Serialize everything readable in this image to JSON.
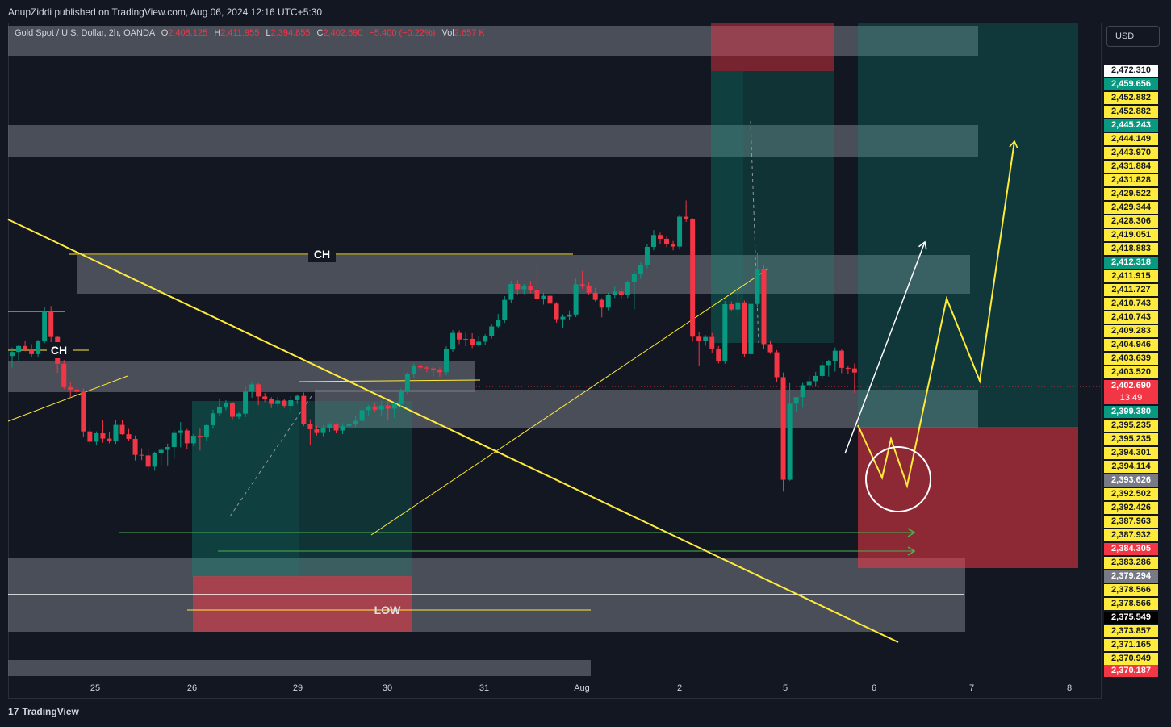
{
  "header": {
    "publisher": "AnupZiddi published on TradingView.com, Aug 06, 2024 12:16 UTC+5:30"
  },
  "legend": {
    "symbol": "Gold Spot / U.S. Dollar, 2h, OANDA",
    "open_label": "O",
    "open": "2,408.125",
    "high_label": "H",
    "high": "2,411.955",
    "low_label": "L",
    "low": "2,394.855",
    "close_label": "C",
    "close": "2,402.690",
    "change": "−5.400 (−0.22%)",
    "vol_label": "Vol",
    "vol": "2.657 K"
  },
  "currency_button": "USD",
  "footer": {
    "brand": "TradingView",
    "logo_glyph": "17"
  },
  "annotations": {
    "ch_top": "CH",
    "ch_left": "CH",
    "low_label": "LOW"
  },
  "price_labels": [
    {
      "text": "2,472.310",
      "bg": "#ffffff",
      "fg": "#131722"
    },
    {
      "text": "2,459.656",
      "bg": "#089981",
      "fg": "#ffffff"
    },
    {
      "text": "2,452.882",
      "bg": "#ffeb3b",
      "fg": "#131722"
    },
    {
      "text": "2,452.882",
      "bg": "#ffeb3b",
      "fg": "#131722"
    },
    {
      "text": "2,445.243",
      "bg": "#089981",
      "fg": "#ffffff"
    },
    {
      "text": "2,444.149",
      "bg": "#ffeb3b",
      "fg": "#131722"
    },
    {
      "text": "2,443.970",
      "bg": "#ffeb3b",
      "fg": "#131722"
    },
    {
      "text": "2,431.884",
      "bg": "#ffeb3b",
      "fg": "#131722"
    },
    {
      "text": "2,431.828",
      "bg": "#ffeb3b",
      "fg": "#131722"
    },
    {
      "text": "2,429.522",
      "bg": "#ffeb3b",
      "fg": "#131722"
    },
    {
      "text": "2,429.344",
      "bg": "#ffeb3b",
      "fg": "#131722"
    },
    {
      "text": "2,428.306",
      "bg": "#ffeb3b",
      "fg": "#131722"
    },
    {
      "text": "2,419.051",
      "bg": "#ffeb3b",
      "fg": "#131722"
    },
    {
      "text": "2,418.883",
      "bg": "#ffeb3b",
      "fg": "#131722"
    },
    {
      "text": "2,412.318",
      "bg": "#089981",
      "fg": "#ffffff"
    },
    {
      "text": "2,411.915",
      "bg": "#ffeb3b",
      "fg": "#131722"
    },
    {
      "text": "2,411.727",
      "bg": "#ffeb3b",
      "fg": "#131722"
    },
    {
      "text": "2,410.743",
      "bg": "#ffeb3b",
      "fg": "#131722"
    },
    {
      "text": "2,410.743",
      "bg": "#ffeb3b",
      "fg": "#131722"
    },
    {
      "text": "2,409.283",
      "bg": "#ffeb3b",
      "fg": "#131722"
    },
    {
      "text": "2,404.946",
      "bg": "#ffeb3b",
      "fg": "#131722"
    },
    {
      "text": "2,403.639",
      "bg": "#ffeb3b",
      "fg": "#131722"
    },
    {
      "text": "2,403.520",
      "bg": "#ffeb3b",
      "fg": "#131722"
    },
    {
      "text": "2,402.690",
      "bg": "#f23645",
      "fg": "#ffffff",
      "sub": "13:49"
    },
    {
      "text": "2,399.380",
      "bg": "#089981",
      "fg": "#ffffff"
    },
    {
      "text": "2,395.235",
      "bg": "#ffeb3b",
      "fg": "#131722"
    },
    {
      "text": "2,395.235",
      "bg": "#ffeb3b",
      "fg": "#131722"
    },
    {
      "text": "2,394.301",
      "bg": "#ffeb3b",
      "fg": "#131722"
    },
    {
      "text": "2,394.114",
      "bg": "#ffeb3b",
      "fg": "#131722"
    },
    {
      "text": "2,393.626",
      "bg": "#787b86",
      "fg": "#ffffff"
    },
    {
      "text": "2,392.502",
      "bg": "#ffeb3b",
      "fg": "#131722"
    },
    {
      "text": "2,392.426",
      "bg": "#ffeb3b",
      "fg": "#131722"
    },
    {
      "text": "2,387.963",
      "bg": "#ffeb3b",
      "fg": "#131722"
    },
    {
      "text": "2,387.932",
      "bg": "#ffeb3b",
      "fg": "#131722"
    },
    {
      "text": "2,384.305",
      "bg": "#f23645",
      "fg": "#ffffff"
    },
    {
      "text": "2,383.286",
      "bg": "#ffeb3b",
      "fg": "#131722"
    },
    {
      "text": "2,379.294",
      "bg": "#787b86",
      "fg": "#ffffff"
    },
    {
      "text": "2,378.566",
      "bg": "#ffeb3b",
      "fg": "#131722"
    },
    {
      "text": "2,378.566",
      "bg": "#ffeb3b",
      "fg": "#131722"
    },
    {
      "text": "2,375.549",
      "bg": "#000000",
      "fg": "#ffffff"
    },
    {
      "text": "2,373.857",
      "bg": "#ffeb3b",
      "fg": "#131722"
    },
    {
      "text": "2,371.165",
      "bg": "#ffeb3b",
      "fg": "#131722"
    },
    {
      "text": "2,370.949",
      "bg": "#ffeb3b",
      "fg": "#131722"
    },
    {
      "text": "2,370.187",
      "bg": "#f23645",
      "fg": "#ffffff"
    }
  ],
  "chart_data": {
    "type": "candlestick",
    "title": "Gold Spot / U.S. Dollar, 2h, OANDA",
    "time_axis_labels": [
      "25",
      "26",
      "29",
      "30",
      "31",
      "Aug",
      "2",
      "5",
      "6",
      "7",
      "8"
    ],
    "up_color": "#089981",
    "down_color": "#f23645",
    "last_price": 2402.69,
    "candles": [
      {
        "o": 2408.0,
        "h": 2410.7,
        "l": 2404.3,
        "c": 2409.3
      },
      {
        "o": 2409.3,
        "h": 2411.5,
        "l": 2406.6,
        "c": 2411.2
      },
      {
        "o": 2411.2,
        "h": 2413.0,
        "l": 2409.5,
        "c": 2410.2
      },
      {
        "o": 2410.2,
        "h": 2411.8,
        "l": 2407.5,
        "c": 2408.6
      },
      {
        "o": 2408.6,
        "h": 2413.2,
        "l": 2407.6,
        "c": 2412.7
      },
      {
        "o": 2412.7,
        "h": 2423.6,
        "l": 2412.1,
        "c": 2422.4
      },
      {
        "o": 2422.4,
        "h": 2424.0,
        "l": 2411.1,
        "c": 2414.1
      },
      {
        "o": 2414.1,
        "h": 2414.3,
        "l": 2402.6,
        "c": 2405.5
      },
      {
        "o": 2405.5,
        "h": 2406.7,
        "l": 2397.4,
        "c": 2398.0
      },
      {
        "o": 2398.0,
        "h": 2399.8,
        "l": 2394.6,
        "c": 2397.2
      },
      {
        "o": 2397.2,
        "h": 2398.0,
        "l": 2395.6,
        "c": 2396.5
      },
      {
        "o": 2396.5,
        "h": 2397.6,
        "l": 2381.9,
        "c": 2383.8
      },
      {
        "o": 2383.8,
        "h": 2385.1,
        "l": 2379.6,
        "c": 2380.5
      },
      {
        "o": 2380.5,
        "h": 2383.8,
        "l": 2379.4,
        "c": 2383.2
      },
      {
        "o": 2383.2,
        "h": 2387.4,
        "l": 2380.2,
        "c": 2381.5
      },
      {
        "o": 2381.5,
        "h": 2383.6,
        "l": 2380.0,
        "c": 2380.7
      },
      {
        "o": 2380.7,
        "h": 2387.5,
        "l": 2379.8,
        "c": 2385.9
      },
      {
        "o": 2385.9,
        "h": 2387.6,
        "l": 2382.7,
        "c": 2382.9
      },
      {
        "o": 2382.9,
        "h": 2384.6,
        "l": 2380.8,
        "c": 2381.4
      },
      {
        "o": 2381.4,
        "h": 2382.5,
        "l": 2374.5,
        "c": 2376.3
      },
      {
        "o": 2376.3,
        "h": 2378.4,
        "l": 2374.6,
        "c": 2376.1
      },
      {
        "o": 2376.1,
        "h": 2378.1,
        "l": 2371.3,
        "c": 2372.5
      },
      {
        "o": 2372.5,
        "h": 2377.3,
        "l": 2371.2,
        "c": 2376.9
      },
      {
        "o": 2376.9,
        "h": 2378.6,
        "l": 2372.9,
        "c": 2377.9
      },
      {
        "o": 2377.9,
        "h": 2379.9,
        "l": 2372.9,
        "c": 2378.8
      },
      {
        "o": 2378.8,
        "h": 2384.2,
        "l": 2375.1,
        "c": 2383.3
      },
      {
        "o": 2383.3,
        "h": 2386.8,
        "l": 2378.7,
        "c": 2384.1
      },
      {
        "o": 2384.1,
        "h": 2384.6,
        "l": 2378.0,
        "c": 2380.0
      },
      {
        "o": 2380.0,
        "h": 2383.0,
        "l": 2379.1,
        "c": 2382.4
      },
      {
        "o": 2382.4,
        "h": 2384.7,
        "l": 2377.7,
        "c": 2381.9
      },
      {
        "o": 2381.9,
        "h": 2386.2,
        "l": 2380.8,
        "c": 2385.8
      },
      {
        "o": 2385.8,
        "h": 2390.7,
        "l": 2384.7,
        "c": 2389.6
      },
      {
        "o": 2389.6,
        "h": 2394.3,
        "l": 2388.9,
        "c": 2391.5
      },
      {
        "o": 2391.5,
        "h": 2393.8,
        "l": 2390.6,
        "c": 2393.0
      },
      {
        "o": 2393.0,
        "h": 2393.2,
        "l": 2387.7,
        "c": 2388.5
      },
      {
        "o": 2388.5,
        "h": 2390.2,
        "l": 2387.8,
        "c": 2389.5
      },
      {
        "o": 2389.5,
        "h": 2398.3,
        "l": 2388.4,
        "c": 2396.6
      },
      {
        "o": 2396.6,
        "h": 2399.8,
        "l": 2394.6,
        "c": 2398.9
      },
      {
        "o": 2398.9,
        "h": 2399.3,
        "l": 2392.2,
        "c": 2395.0
      },
      {
        "o": 2395.0,
        "h": 2396.1,
        "l": 2393.2,
        "c": 2394.1
      },
      {
        "o": 2394.1,
        "h": 2394.8,
        "l": 2391.3,
        "c": 2392.6
      },
      {
        "o": 2392.6,
        "h": 2395.1,
        "l": 2391.6,
        "c": 2393.7
      },
      {
        "o": 2393.7,
        "h": 2394.2,
        "l": 2391.3,
        "c": 2392.0
      },
      {
        "o": 2392.0,
        "h": 2395.1,
        "l": 2390.1,
        "c": 2393.8
      },
      {
        "o": 2393.8,
        "h": 2395.7,
        "l": 2392.6,
        "c": 2395.2
      },
      {
        "o": 2395.2,
        "h": 2396.3,
        "l": 2385.5,
        "c": 2386.2
      },
      {
        "o": 2386.2,
        "h": 2387.7,
        "l": 2379.5,
        "c": 2384.5
      },
      {
        "o": 2384.5,
        "h": 2385.6,
        "l": 2382.5,
        "c": 2383.3
      },
      {
        "o": 2383.3,
        "h": 2385.8,
        "l": 2382.3,
        "c": 2385.0
      },
      {
        "o": 2385.0,
        "h": 2386.5,
        "l": 2383.5,
        "c": 2386.0
      },
      {
        "o": 2386.0,
        "h": 2386.4,
        "l": 2383.2,
        "c": 2384.1
      },
      {
        "o": 2384.1,
        "h": 2386.4,
        "l": 2382.9,
        "c": 2385.5
      },
      {
        "o": 2385.5,
        "h": 2386.7,
        "l": 2384.1,
        "c": 2386.1
      },
      {
        "o": 2386.1,
        "h": 2388.9,
        "l": 2385.2,
        "c": 2387.2
      },
      {
        "o": 2387.2,
        "h": 2391.8,
        "l": 2386.2,
        "c": 2390.6
      },
      {
        "o": 2390.6,
        "h": 2392.3,
        "l": 2388.9,
        "c": 2391.8
      },
      {
        "o": 2391.8,
        "h": 2392.8,
        "l": 2389.9,
        "c": 2390.8
      },
      {
        "o": 2390.8,
        "h": 2393.7,
        "l": 2388.8,
        "c": 2392.1
      },
      {
        "o": 2392.1,
        "h": 2393.5,
        "l": 2387.5,
        "c": 2391.1
      },
      {
        "o": 2391.1,
        "h": 2393.3,
        "l": 2388.1,
        "c": 2392.6
      },
      {
        "o": 2392.6,
        "h": 2397.6,
        "l": 2391.6,
        "c": 2396.8
      },
      {
        "o": 2396.8,
        "h": 2402.8,
        "l": 2395.8,
        "c": 2402.1
      },
      {
        "o": 2402.1,
        "h": 2405.6,
        "l": 2401.0,
        "c": 2404.9
      },
      {
        "o": 2404.9,
        "h": 2405.4,
        "l": 2403.4,
        "c": 2404.3
      },
      {
        "o": 2404.3,
        "h": 2404.8,
        "l": 2402.8,
        "c": 2404.0
      },
      {
        "o": 2404.0,
        "h": 2404.5,
        "l": 2401.5,
        "c": 2403.4
      },
      {
        "o": 2403.4,
        "h": 2404.3,
        "l": 2401.3,
        "c": 2402.8
      },
      {
        "o": 2402.8,
        "h": 2411.1,
        "l": 2401.8,
        "c": 2410.2
      },
      {
        "o": 2410.2,
        "h": 2416.3,
        "l": 2409.4,
        "c": 2415.4
      },
      {
        "o": 2415.4,
        "h": 2416.2,
        "l": 2411.8,
        "c": 2413.3
      },
      {
        "o": 2413.3,
        "h": 2415.5,
        "l": 2411.1,
        "c": 2413.5
      },
      {
        "o": 2413.5,
        "h": 2415.3,
        "l": 2410.5,
        "c": 2411.5
      },
      {
        "o": 2411.5,
        "h": 2414.3,
        "l": 2411.0,
        "c": 2412.6
      },
      {
        "o": 2412.6,
        "h": 2415.0,
        "l": 2411.6,
        "c": 2414.4
      },
      {
        "o": 2414.4,
        "h": 2418.4,
        "l": 2413.6,
        "c": 2417.5
      },
      {
        "o": 2417.5,
        "h": 2421.5,
        "l": 2416.8,
        "c": 2419.6
      },
      {
        "o": 2419.6,
        "h": 2427.2,
        "l": 2418.6,
        "c": 2426.0
      },
      {
        "o": 2426.0,
        "h": 2432.1,
        "l": 2425.0,
        "c": 2431.1
      },
      {
        "o": 2431.1,
        "h": 2432.3,
        "l": 2427.8,
        "c": 2429.4
      },
      {
        "o": 2429.4,
        "h": 2431.1,
        "l": 2427.9,
        "c": 2430.3
      },
      {
        "o": 2430.3,
        "h": 2432.1,
        "l": 2428.2,
        "c": 2429.2
      },
      {
        "o": 2429.2,
        "h": 2437.0,
        "l": 2425.5,
        "c": 2426.2
      },
      {
        "o": 2426.2,
        "h": 2428.3,
        "l": 2424.5,
        "c": 2427.3
      },
      {
        "o": 2427.3,
        "h": 2428.6,
        "l": 2424.1,
        "c": 2424.8
      },
      {
        "o": 2424.8,
        "h": 2425.3,
        "l": 2418.7,
        "c": 2419.8
      },
      {
        "o": 2419.8,
        "h": 2421.4,
        "l": 2417.1,
        "c": 2420.6
      },
      {
        "o": 2420.6,
        "h": 2422.6,
        "l": 2419.5,
        "c": 2421.3
      },
      {
        "o": 2421.3,
        "h": 2432.9,
        "l": 2420.5,
        "c": 2431.0
      },
      {
        "o": 2431.0,
        "h": 2435.3,
        "l": 2429.6,
        "c": 2430.6
      },
      {
        "o": 2430.6,
        "h": 2431.6,
        "l": 2427.5,
        "c": 2428.3
      },
      {
        "o": 2428.3,
        "h": 2429.9,
        "l": 2425.5,
        "c": 2426.0
      },
      {
        "o": 2426.0,
        "h": 2426.6,
        "l": 2420.4,
        "c": 2423.5
      },
      {
        "o": 2423.5,
        "h": 2428.3,
        "l": 2422.6,
        "c": 2427.5
      },
      {
        "o": 2427.5,
        "h": 2430.4,
        "l": 2426.6,
        "c": 2428.7
      },
      {
        "o": 2428.7,
        "h": 2429.7,
        "l": 2426.3,
        "c": 2427.5
      },
      {
        "o": 2427.5,
        "h": 2432.2,
        "l": 2426.6,
        "c": 2431.7
      },
      {
        "o": 2431.7,
        "h": 2435.2,
        "l": 2423.0,
        "c": 2434.2
      },
      {
        "o": 2434.2,
        "h": 2438.1,
        "l": 2432.7,
        "c": 2437.1
      },
      {
        "o": 2437.1,
        "h": 2443.9,
        "l": 2436.1,
        "c": 2443.0
      },
      {
        "o": 2443.0,
        "h": 2448.4,
        "l": 2441.9,
        "c": 2446.8
      },
      {
        "o": 2446.8,
        "h": 2447.6,
        "l": 2444.0,
        "c": 2445.6
      },
      {
        "o": 2445.6,
        "h": 2446.3,
        "l": 2442.9,
        "c": 2443.8
      },
      {
        "o": 2443.8,
        "h": 2444.9,
        "l": 2441.9,
        "c": 2443.1
      },
      {
        "o": 2443.1,
        "h": 2453.2,
        "l": 2442.1,
        "c": 2452.7
      },
      {
        "o": 2452.7,
        "h": 2457.9,
        "l": 2451.0,
        "c": 2451.8
      },
      {
        "o": 2451.8,
        "h": 2452.2,
        "l": 2412.6,
        "c": 2414.2
      },
      {
        "o": 2414.2,
        "h": 2415.6,
        "l": 2404.9,
        "c": 2412.9
      },
      {
        "o": 2412.9,
        "h": 2414.7,
        "l": 2411.3,
        "c": 2414.1
      },
      {
        "o": 2414.1,
        "h": 2415.4,
        "l": 2408.8,
        "c": 2410.4
      },
      {
        "o": 2410.4,
        "h": 2411.2,
        "l": 2405.6,
        "c": 2406.4
      },
      {
        "o": 2406.4,
        "h": 2425.6,
        "l": 2405.5,
        "c": 2424.6
      },
      {
        "o": 2424.6,
        "h": 2425.5,
        "l": 2422.3,
        "c": 2422.9
      },
      {
        "o": 2422.9,
        "h": 2429.2,
        "l": 2420.6,
        "c": 2425.2
      },
      {
        "o": 2425.2,
        "h": 2425.8,
        "l": 2407.6,
        "c": 2408.6
      },
      {
        "o": 2408.6,
        "h": 2424.5,
        "l": 2406.5,
        "c": 2424.7
      },
      {
        "o": 2424.7,
        "h": 2441.0,
        "l": 2423.6,
        "c": 2435.7
      },
      {
        "o": 2435.7,
        "h": 2437.0,
        "l": 2410.2,
        "c": 2411.8
      },
      {
        "o": 2411.8,
        "h": 2412.9,
        "l": 2408.7,
        "c": 2409.2
      },
      {
        "o": 2409.2,
        "h": 2409.9,
        "l": 2399.7,
        "c": 2401.2
      },
      {
        "o": 2401.2,
        "h": 2402.7,
        "l": 2364.5,
        "c": 2368.3
      },
      {
        "o": 2368.3,
        "h": 2399.3,
        "l": 2368.0,
        "c": 2392.7
      },
      {
        "o": 2392.7,
        "h": 2394.8,
        "l": 2390.0,
        "c": 2394.8
      },
      {
        "o": 2394.8,
        "h": 2399.4,
        "l": 2391.4,
        "c": 2398.6
      },
      {
        "o": 2398.6,
        "h": 2401.7,
        "l": 2397.5,
        "c": 2399.9
      },
      {
        "o": 2399.9,
        "h": 2402.9,
        "l": 2398.3,
        "c": 2401.6
      },
      {
        "o": 2401.6,
        "h": 2406.2,
        "l": 2400.7,
        "c": 2405.1
      },
      {
        "o": 2405.1,
        "h": 2406.8,
        "l": 2401.4,
        "c": 2406.3
      },
      {
        "o": 2406.3,
        "h": 2410.7,
        "l": 2403.0,
        "c": 2409.7
      },
      {
        "o": 2409.7,
        "h": 2410.1,
        "l": 2402.5,
        "c": 2404.2
      },
      {
        "o": 2404.2,
        "h": 2404.9,
        "l": 2402.3,
        "c": 2404.0
      },
      {
        "o": 2404.0,
        "h": 2405.6,
        "l": 2396.1,
        "c": 2402.7
      }
    ]
  }
}
